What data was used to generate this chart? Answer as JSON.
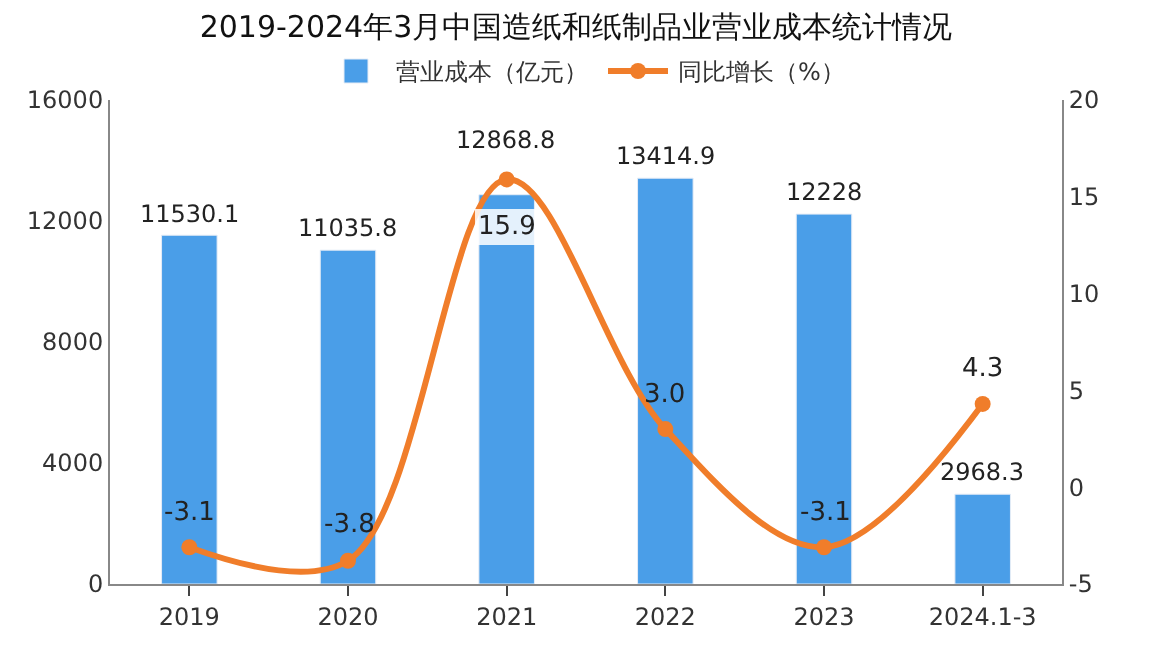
{
  "chart_data": {
    "type": "bar",
    "title": "2019-2024年3月中国造纸和纸制品业营业成本统计情况",
    "categories": [
      "2019",
      "2020",
      "2021",
      "2022",
      "2023",
      "2024.1-3"
    ],
    "series": [
      {
        "name": "营业成本（亿元）",
        "color": "#4a9ee8",
        "values": [
          11530.1,
          11035.8,
          12868.8,
          13414.9,
          12228,
          2968.3
        ],
        "value_labels": [
          "11530.1",
          "11035.8",
          "12868.8",
          "13414.9",
          "12228",
          "2968.3"
        ]
      },
      {
        "name": "同比增长（%）",
        "type": "line",
        "axis": "y2",
        "color": "#f07d2a",
        "marker": "circle",
        "values": [
          -3.1,
          -3.8,
          15.9,
          3.0,
          -3.1,
          4.3
        ],
        "value_labels": [
          "-3.1",
          "-3.8",
          "15.9",
          "3.0",
          "-3.1",
          "4.3"
        ]
      }
    ],
    "ylim": [
      0,
      16000
    ],
    "yticks": [
      0,
      4000,
      8000,
      12000,
      16000
    ],
    "y2lim": [
      -5,
      20
    ],
    "y2ticks": [
      -5,
      0,
      5,
      10,
      15,
      20
    ],
    "legend": "top"
  }
}
